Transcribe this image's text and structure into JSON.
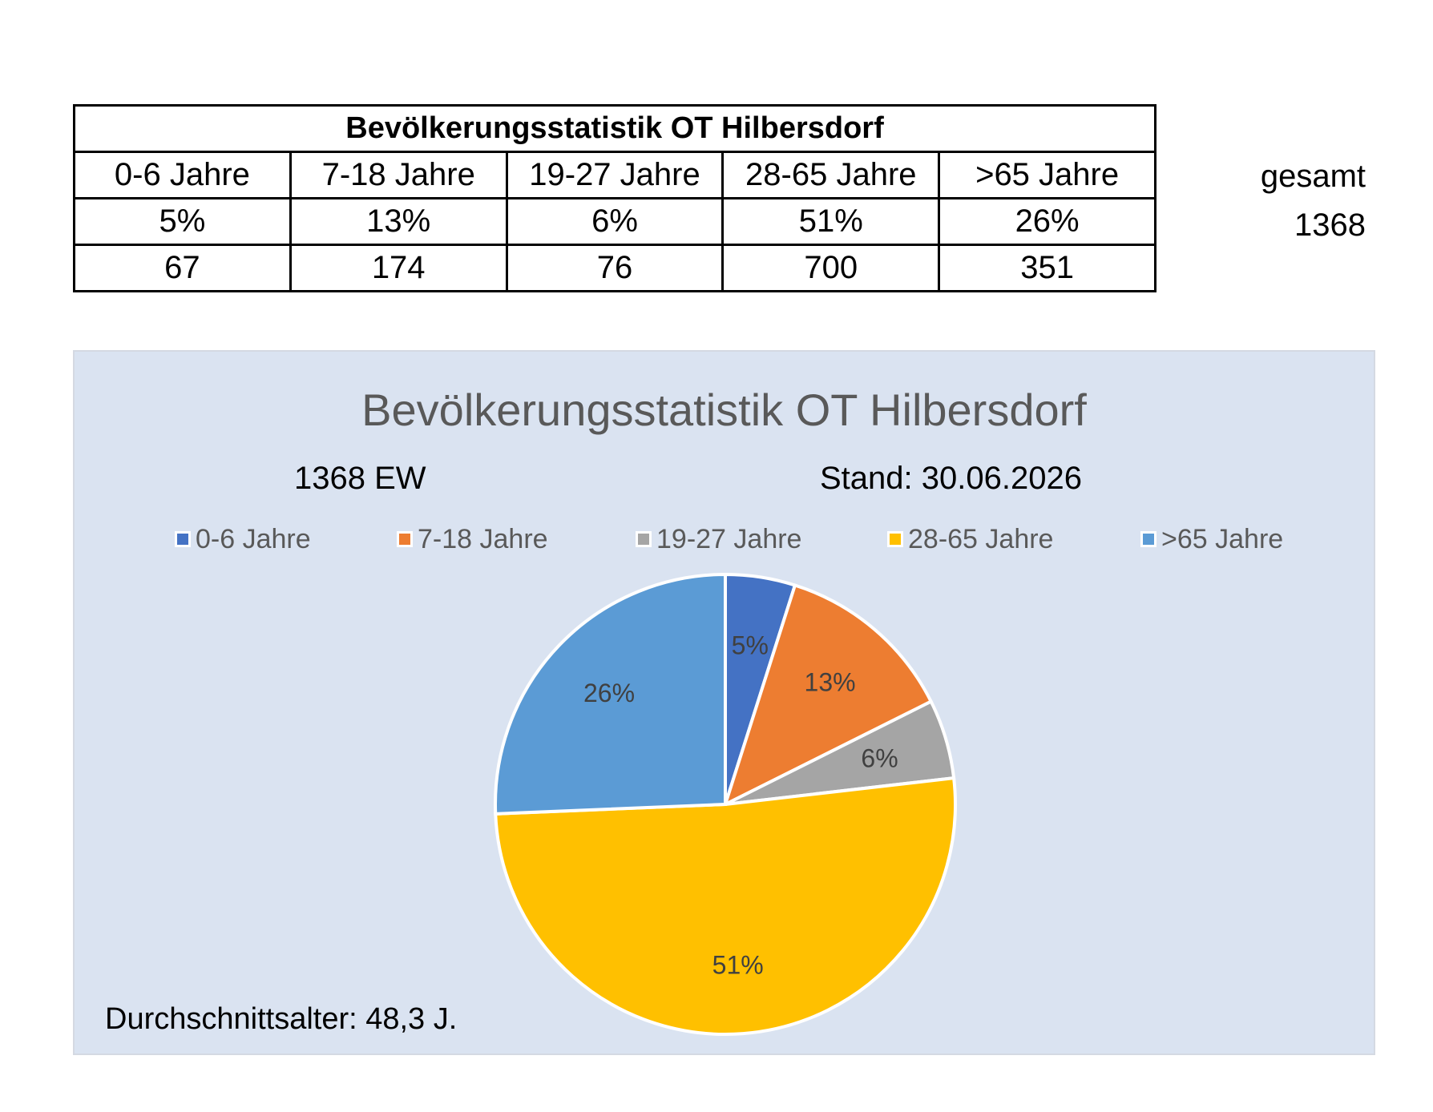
{
  "table": {
    "title": "Bevölkerungsstatistik OT Hilbersdorf",
    "headers": [
      "0-6 Jahre",
      "7-18 Jahre",
      "19-27 Jahre",
      "28-65 Jahre",
      ">65 Jahre"
    ],
    "percents": [
      "5%",
      "13%",
      "6%",
      "51%",
      "26%"
    ],
    "counts": [
      "67",
      "174",
      "76",
      "700",
      "351"
    ],
    "total_label": "gesamt",
    "total_value": "1368"
  },
  "chart_data": {
    "type": "pie",
    "title": "Bevölkerungsstatistik OT Hilbersdorf",
    "subtitle_left": "1368 EW",
    "subtitle_right": "Stand: 30.06.2026",
    "footnote": "Durchschnittsalter: 48,3 J.",
    "legend_position": "top",
    "categories": [
      "0-6 Jahre",
      "7-18 Jahre",
      "19-27 Jahre",
      "28-65 Jahre",
      ">65 Jahre"
    ],
    "values": [
      67,
      174,
      76,
      700,
      351
    ],
    "data_labels": [
      "5%",
      "13%",
      "6%",
      "51%",
      "26%"
    ],
    "colors": [
      "#4472c4",
      "#ed7d31",
      "#a5a5a5",
      "#ffc000",
      "#5b9bd5"
    ]
  }
}
